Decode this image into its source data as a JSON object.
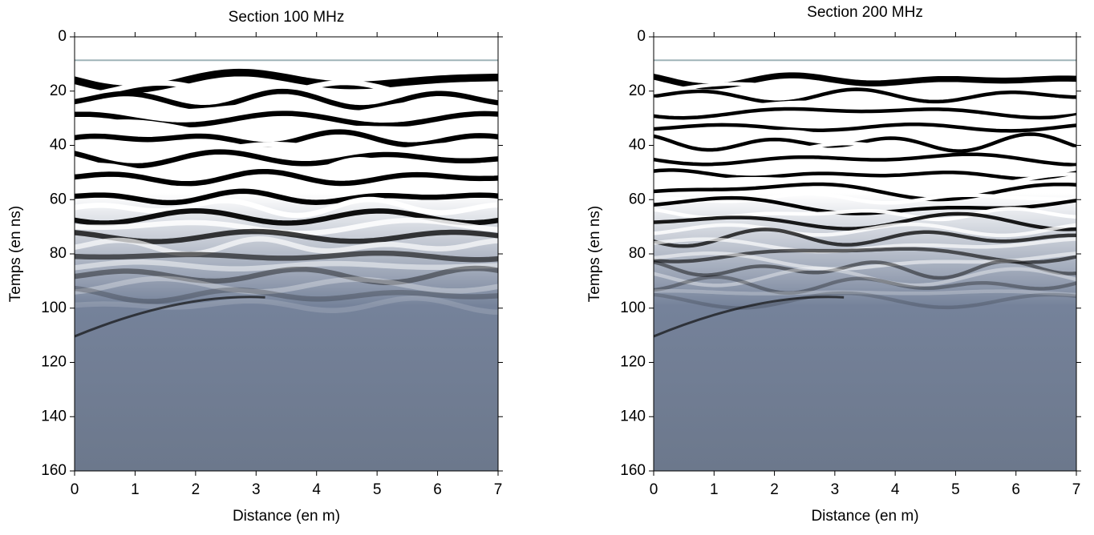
{
  "chart_data": [
    {
      "type": "heatmap",
      "title": "Section 100 MHz",
      "x_label": "Distance (en m)",
      "y_label": "Temps (en ns)",
      "xlim": [
        0,
        7
      ],
      "xticks": [
        0,
        1,
        2,
        3,
        4,
        5,
        6,
        7
      ],
      "ylim": [
        0,
        160
      ],
      "yticks": [
        0,
        20,
        40,
        60,
        80,
        100,
        120,
        140,
        160
      ],
      "y_inverted": true
    },
    {
      "type": "heatmap",
      "title": "Section 200 MHz",
      "x_label": "Distance (en m)",
      "y_label": "Temps (en ns)",
      "xlim": [
        0,
        7
      ],
      "xticks": [
        0,
        1,
        2,
        3,
        4,
        5,
        6,
        7
      ],
      "ylim": [
        0,
        160
      ],
      "yticks": [
        0,
        20,
        40,
        60,
        80,
        100,
        120,
        140,
        160
      ],
      "y_inverted": true
    }
  ]
}
